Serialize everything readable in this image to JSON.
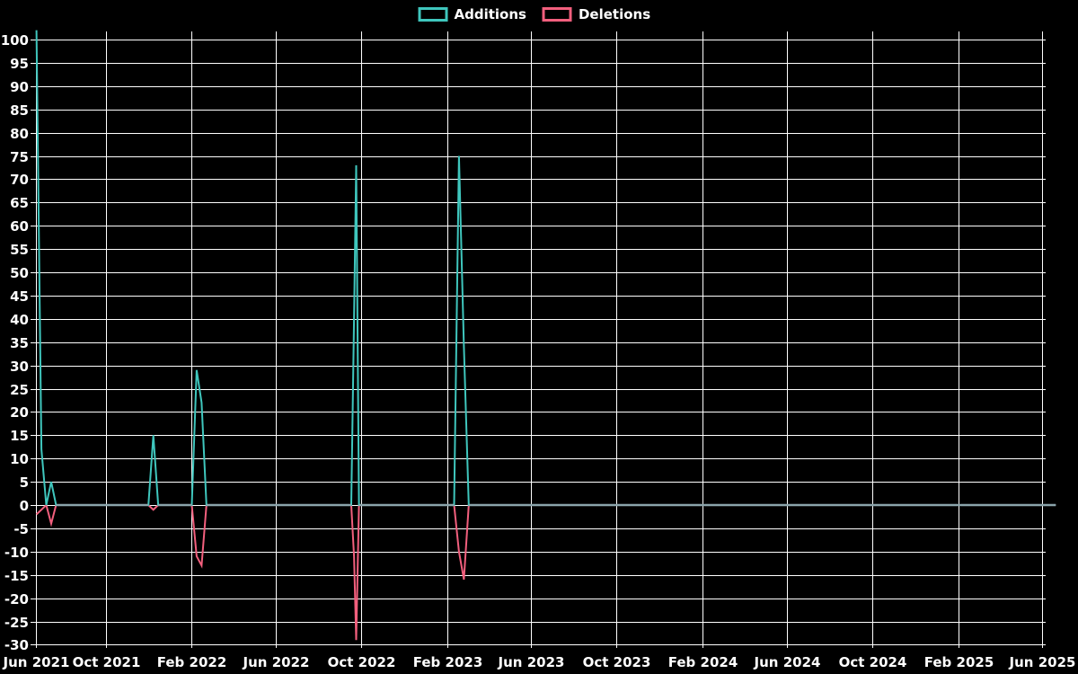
{
  "chart_data": {
    "type": "line",
    "title": "",
    "background_color": "#000000",
    "grid": {
      "show": true,
      "color": "#ffffff"
    },
    "legend": {
      "position": "top-center",
      "entries": [
        "Additions",
        "Deletions"
      ]
    },
    "zero_line_color": "#8ba4ab",
    "y_axis": {
      "min": -30,
      "max": 100,
      "tick_step": 5,
      "tick_labels": [
        "100",
        "95",
        "90",
        "85",
        "80",
        "75",
        "70",
        "65",
        "60",
        "55",
        "50",
        "45",
        "40",
        "35",
        "30",
        "25",
        "20",
        "15",
        "10",
        "5",
        "0",
        "-5",
        "-10",
        "-15",
        "-20",
        "-25",
        "-30"
      ]
    },
    "x_axis": {
      "ticks": [
        {
          "label": "Jun 2021",
          "date": "2021-06-01"
        },
        {
          "label": "Oct 2021",
          "date": "2021-10-01"
        },
        {
          "label": "Feb 2022",
          "date": "2022-02-01"
        },
        {
          "label": "Jun 2022",
          "date": "2022-06-01"
        },
        {
          "label": "Oct 2022",
          "date": "2022-10-01"
        },
        {
          "label": "Feb 2023",
          "date": "2023-02-01"
        },
        {
          "label": "Jun 2023",
          "date": "2023-06-01"
        },
        {
          "label": "Oct 2023",
          "date": "2023-10-01"
        },
        {
          "label": "Feb 2024",
          "date": "2024-02-01"
        },
        {
          "label": "Jun 2024",
          "date": "2024-06-01"
        },
        {
          "label": "Oct 2024",
          "date": "2024-10-01"
        },
        {
          "label": "Feb 2025",
          "date": "2025-02-01"
        },
        {
          "label": "Jun 2025",
          "date": "2025-06-01"
        }
      ]
    },
    "series": [
      {
        "name": "Additions",
        "color": "#3fc6bd",
        "points": [
          [
            "2021-06-24",
            102
          ],
          [
            "2021-07-01",
            12
          ],
          [
            "2021-07-08",
            0
          ],
          [
            "2021-07-15",
            5
          ],
          [
            "2021-07-22",
            0
          ],
          [
            "2021-12-01",
            0
          ],
          [
            "2021-12-08",
            15
          ],
          [
            "2021-12-15",
            0
          ],
          [
            "2022-02-01",
            0
          ],
          [
            "2022-02-08",
            29
          ],
          [
            "2022-02-15",
            22
          ],
          [
            "2022-02-22",
            0
          ],
          [
            "2022-09-17",
            0
          ],
          [
            "2022-09-21",
            40
          ],
          [
            "2022-09-24",
            73
          ],
          [
            "2022-09-28",
            0
          ],
          [
            "2023-02-11",
            0
          ],
          [
            "2023-02-18",
            75
          ],
          [
            "2023-02-25",
            34
          ],
          [
            "2023-03-04",
            0
          ],
          [
            "2025-06-20",
            0
          ]
        ]
      },
      {
        "name": "Deletions",
        "color": "#f25f7d",
        "points": [
          [
            "2021-06-24",
            -2
          ],
          [
            "2021-07-01",
            -1
          ],
          [
            "2021-07-08",
            0
          ],
          [
            "2021-07-15",
            -4
          ],
          [
            "2021-07-22",
            0
          ],
          [
            "2021-12-01",
            0
          ],
          [
            "2021-12-08",
            -1
          ],
          [
            "2021-12-15",
            0
          ],
          [
            "2022-02-01",
            0
          ],
          [
            "2022-02-08",
            -11
          ],
          [
            "2022-02-15",
            -13
          ],
          [
            "2022-02-22",
            0
          ],
          [
            "2022-09-17",
            0
          ],
          [
            "2022-09-21",
            -11
          ],
          [
            "2022-09-24",
            -29
          ],
          [
            "2022-09-28",
            0
          ],
          [
            "2023-02-11",
            0
          ],
          [
            "2023-02-18",
            -10
          ],
          [
            "2023-02-25",
            -16
          ],
          [
            "2023-03-04",
            0
          ],
          [
            "2025-06-20",
            0
          ]
        ]
      }
    ]
  }
}
